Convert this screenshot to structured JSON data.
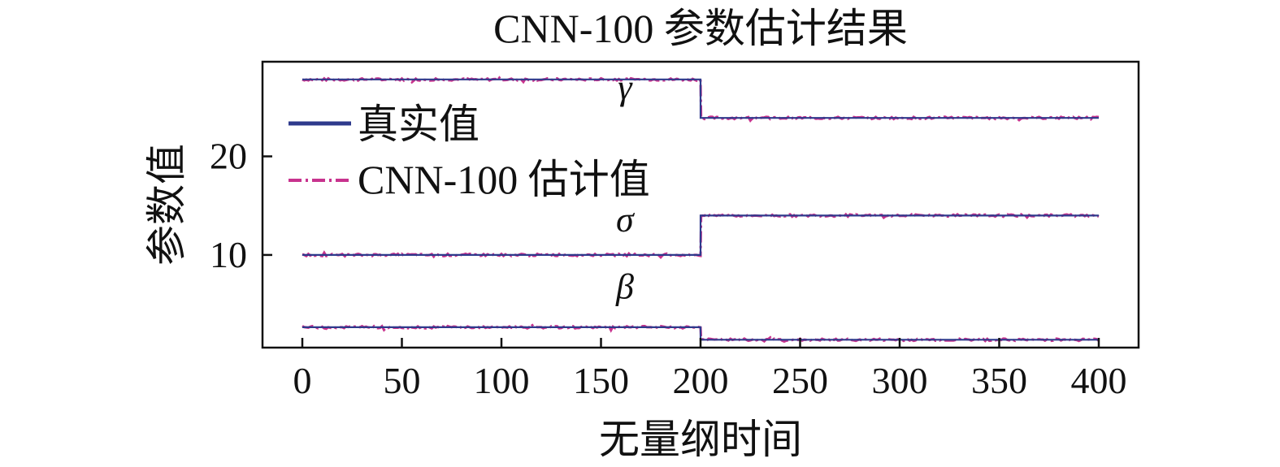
{
  "chart_data": {
    "type": "line",
    "title": "CNN-100 参数估计结果",
    "xlabel": "无量纲时间",
    "ylabel": "参数值",
    "xlim": [
      -20,
      420
    ],
    "ylim": [
      0.6,
      29.6
    ],
    "xticks": [
      0,
      50,
      100,
      150,
      200,
      250,
      300,
      350,
      400
    ],
    "yticks": [
      10,
      20
    ],
    "legend": {
      "position": "upper-left",
      "entries": [
        "真实值",
        "CNN-100 估计值"
      ]
    },
    "annotations": [
      {
        "text": "γ",
        "x": 162,
        "y": 25.8
      },
      {
        "text": "σ",
        "x": 162,
        "y": 12.4
      },
      {
        "text": "β",
        "x": 162,
        "y": 5.6
      }
    ],
    "series": [
      {
        "name": "真实值",
        "color": "#2e3a8c",
        "style": "solid",
        "groups": [
          {
            "x": [
              0,
              200,
              200,
              400
            ],
            "y": [
              27.8,
              27.8,
              23.9,
              23.9
            ]
          },
          {
            "x": [
              0,
              200,
              200,
              400
            ],
            "y": [
              10.0,
              10.0,
              14.0,
              14.0
            ]
          },
          {
            "x": [
              0,
              200,
              200,
              400
            ],
            "y": [
              2.67,
              2.67,
              1.4,
              1.4
            ]
          }
        ]
      },
      {
        "name": "CNN-100 估计值",
        "color": "#c8338e",
        "style": "dashdot",
        "noise_amplitude": 0.12,
        "groups": [
          {
            "x": [
              0,
              200,
              200,
              400
            ],
            "y": [
              27.8,
              27.8,
              23.9,
              23.9
            ]
          },
          {
            "x": [
              0,
              200,
              200,
              400
            ],
            "y": [
              10.0,
              10.0,
              14.0,
              14.0
            ]
          },
          {
            "x": [
              0,
              200,
              200,
              400
            ],
            "y": [
              2.67,
              2.67,
              1.4,
              1.4
            ]
          }
        ]
      }
    ]
  }
}
